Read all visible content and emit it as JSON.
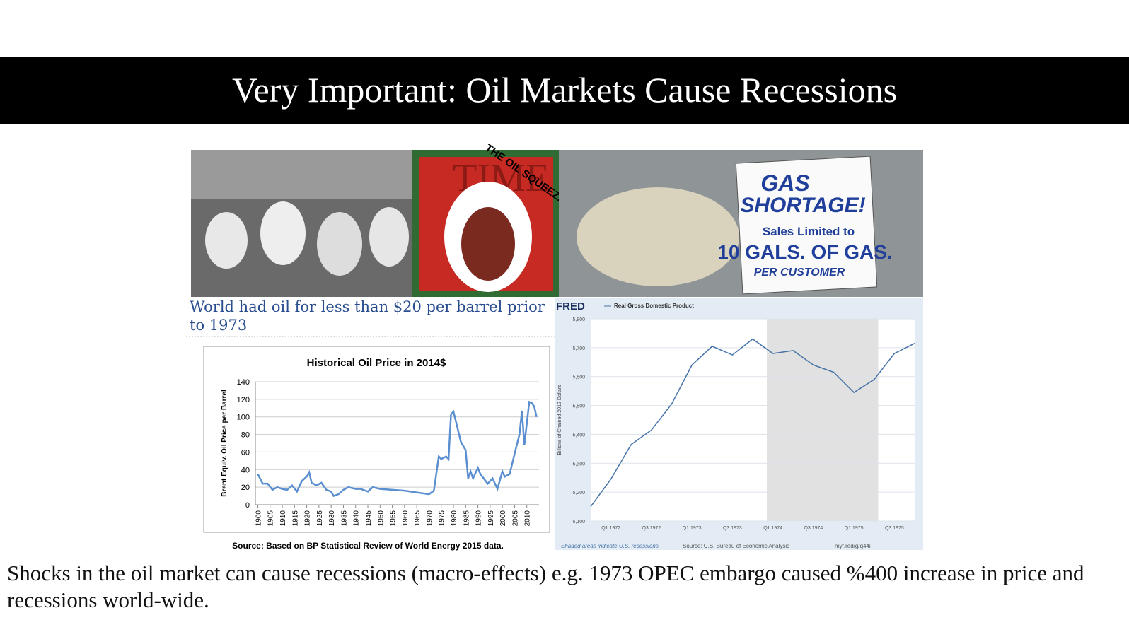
{
  "title": "Very Important: Oil Markets Cause Recessions",
  "photos": {
    "time_cover": {
      "masthead": "TIME",
      "banner": "THE OIL SQUEEZE"
    },
    "sign": {
      "lines": [
        "GAS",
        "SHORTAGE!",
        "Sales Limited to",
        "10 GALS. OF GAS.",
        "PER CUSTOMER"
      ]
    }
  },
  "oil": {
    "headline": "World had oil for less than $20 per barrel prior to 1973",
    "source": "Source: Based on BP Statistical Review of World Energy 2015 data.",
    "chart_data": {
      "type": "line",
      "title": "Historical Oil Price in 2014$",
      "y_label": "Brent Equiv. Oil Price per Barrel",
      "x": [
        1900,
        1902,
        1904,
        1906,
        1908,
        1910,
        1912,
        1914,
        1916,
        1918,
        1920,
        1921,
        1922,
        1924,
        1926,
        1928,
        1930,
        1931,
        1933,
        1935,
        1937,
        1940,
        1942,
        1945,
        1947,
        1950,
        1955,
        1960,
        1965,
        1970,
        1972,
        1974,
        1975,
        1977,
        1978,
        1979,
        1980,
        1981,
        1983,
        1985,
        1986,
        1987,
        1988,
        1990,
        1991,
        1994,
        1996,
        1998,
        2000,
        2001,
        2003,
        2005,
        2007,
        2008,
        2009,
        2011,
        2012,
        2013,
        2014
      ],
      "series": [
        {
          "name": null,
          "color": "#5b8fd0",
          "values": [
            35,
            24,
            24,
            17,
            20,
            18,
            17,
            22,
            15,
            27,
            32,
            37,
            25,
            22,
            25,
            17,
            15,
            10,
            12,
            17,
            20,
            18,
            18,
            15,
            20,
            18,
            17,
            16,
            14,
            12,
            16,
            55,
            52,
            55,
            52,
            103,
            106,
            95,
            72,
            62,
            30,
            38,
            30,
            42,
            35,
            24,
            30,
            18,
            38,
            32,
            35,
            58,
            80,
            107,
            68,
            117,
            116,
            112,
            100
          ]
        }
      ],
      "xlim": [
        1899,
        2015
      ],
      "xticks": [
        1900,
        1905,
        1910,
        1915,
        1920,
        1925,
        1930,
        1935,
        1940,
        1945,
        1950,
        1955,
        1960,
        1965,
        1970,
        1975,
        1980,
        1985,
        1990,
        1995,
        2000,
        2005,
        2010
      ],
      "ylim": [
        0,
        140
      ],
      "yticks": [
        0,
        20,
        40,
        60,
        80,
        100,
        120,
        140
      ]
    }
  },
  "fred": {
    "logo": "FRED",
    "footer_left": "Shaded areas indicate U.S. recessions",
    "footer_mid": "Source: U.S. Bureau of Economic Analysis",
    "footer_right": "myf.red/g/q44i",
    "chart_data": {
      "type": "line",
      "y_label": "Billions of Chained 2012 Dollars",
      "categories": [
        null,
        "Q1 1972",
        null,
        "Q3 1972",
        null,
        "Q1 1973",
        null,
        "Q3 1973",
        null,
        "Q1 1974",
        null,
        "Q3 1974",
        null,
        "Q1 1975",
        null,
        "Q3 1975",
        null
      ],
      "series": [
        {
          "name": "Real Gross Domestic Product",
          "color": "#4572a7",
          "values": [
            5150,
            5245,
            5365,
            5415,
            5505,
            5640,
            5705,
            5675,
            5730,
            5680,
            5690,
            5640,
            5615,
            5545,
            5590,
            5680,
            5715
          ]
        }
      ],
      "recession": {
        "from": 8.7,
        "to": 14.2
      },
      "ylim": [
        5100,
        5800
      ],
      "yticks": [
        {
          "value": 5100,
          "label": "5,100"
        },
        {
          "value": 5200,
          "label": "5,200"
        },
        {
          "value": 5300,
          "label": "5,300"
        },
        {
          "value": 5400,
          "label": "5,400"
        },
        {
          "value": 5500,
          "label": "5,500"
        },
        {
          "value": 5600,
          "label": "5,600"
        },
        {
          "value": 5700,
          "label": "5,700"
        },
        {
          "value": 5800,
          "label": "5,800"
        }
      ]
    }
  },
  "body": "Shocks in the oil market can cause recessions (macro-effects) e.g. 1973 OPEC embargo caused %400 increase in price and recessions world-wide."
}
